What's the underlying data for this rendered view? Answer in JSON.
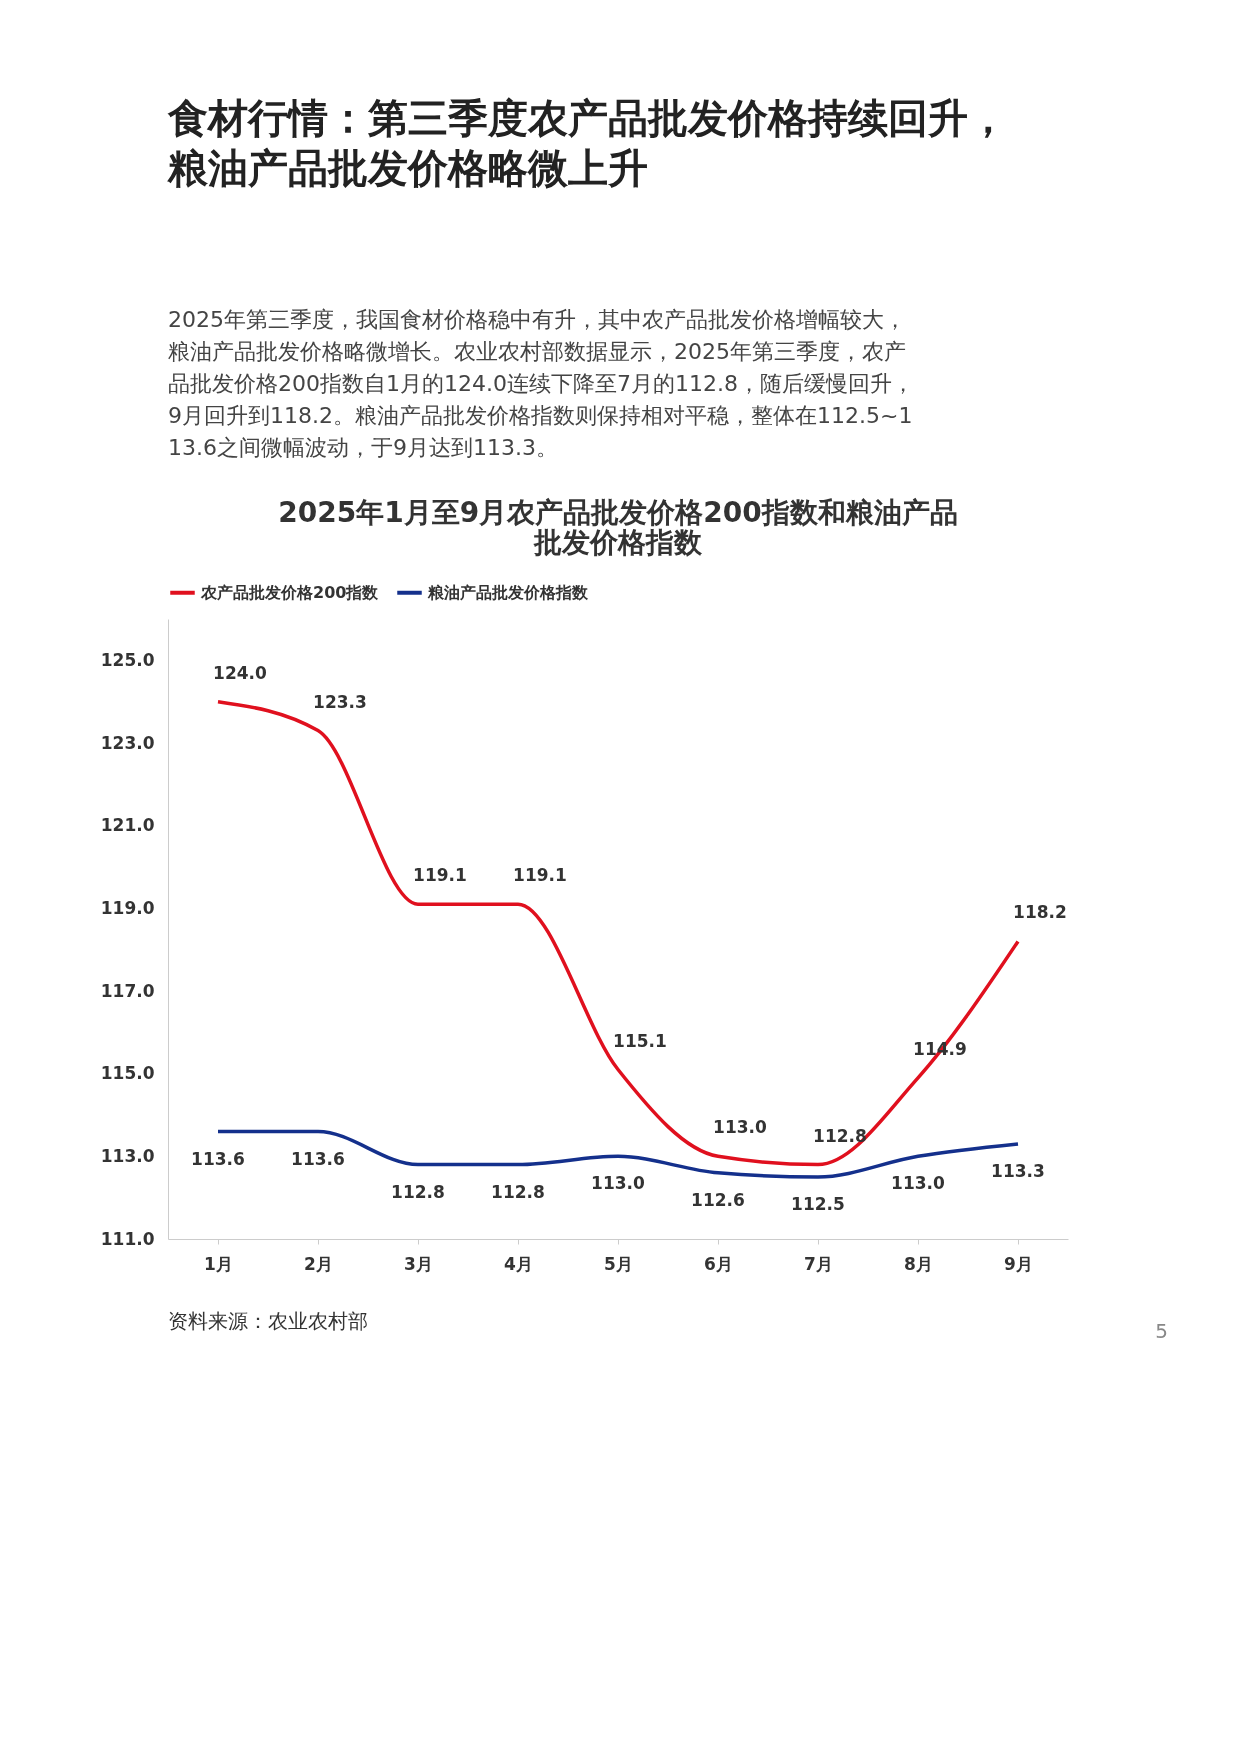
{
  "chart_data": {
    "type": "line",
    "title": "2025年1月至9月农产品批发价格200指数和粮油产品批发价格指数",
    "categories": [
      "1月",
      "2月",
      "3月",
      "4月",
      "5月",
      "6月",
      "7月",
      "8月",
      "9月"
    ],
    "series": [
      {
        "name": "农产品批发价格200指数",
        "color": "#e0101e",
        "values": [
          124.0,
          123.3,
          119.1,
          119.1,
          115.1,
          113.0,
          112.8,
          114.9,
          118.2
        ],
        "value_labels": [
          "124.0",
          "123.3",
          "119.1",
          "119.1",
          "115.1",
          "113.0",
          "112.8",
          "114.9",
          "118.2"
        ]
      },
      {
        "name": "粮油产品批发价格指数",
        "color": "#14308c",
        "values": [
          113.6,
          113.6,
          112.8,
          112.8,
          113.0,
          112.6,
          112.5,
          113.0,
          113.3
        ],
        "value_labels": [
          "113.6",
          "113.6",
          "112.8",
          "112.8",
          "113.0",
          "112.6",
          "112.5",
          "113.0",
          "113.3"
        ]
      }
    ],
    "ylim": [
      111,
      126
    ],
    "yticks": [
      {
        "value": 111,
        "label": "111.0"
      },
      {
        "value": 113,
        "label": "113.0"
      },
      {
        "value": 115,
        "label": "115.0"
      },
      {
        "value": 117,
        "label": "117.0"
      },
      {
        "value": 119,
        "label": "119.0"
      },
      {
        "value": 121,
        "label": "121.0"
      },
      {
        "value": 123,
        "label": "123.0"
      },
      {
        "value": 125,
        "label": "125.0"
      }
    ],
    "line_style": "solid",
    "legend": "top",
    "grid": false,
    "marker": "none",
    "annotations": [
      "食材行情：第三季度农产品批发价格持续回升，粮油产品批发价格略微上升",
      "2025年第三季度，我国食材价格稳中有升，其中农产品批发价格增幅较大，粮油产品批发价格略微增长。农业农村部数据显示，2025年第三季度，农产品批发价格200指数自1月的124.0连续下降至7月的112.8，随后缓慢回升，9月回升到118.2。粮油产品批发价格指数则保持相对平稳，整体在112.5~113.6之间微幅波动，于9月达到113.3。",
      "资料来源：农业农村部",
      "5"
    ]
  }
}
